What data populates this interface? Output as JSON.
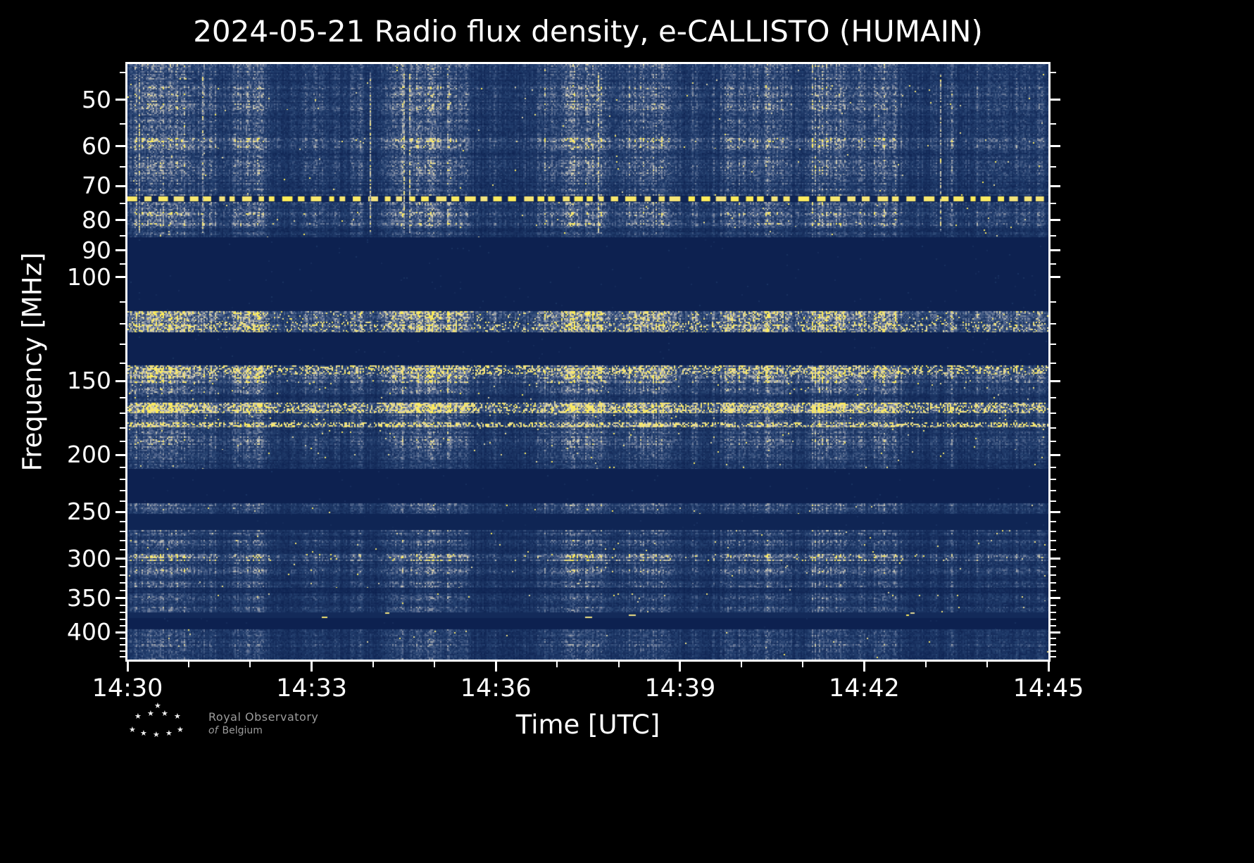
{
  "page": {
    "background": "#000000"
  },
  "header": {
    "title": "2024-05-21 Radio flux density, e-CALLISTO (HUMAIN)"
  },
  "footer": {
    "org_line1": "Royal Observatory",
    "org_line2_italic": "of",
    "org_line2_rest": "Belgium"
  },
  "chart_data": {
    "type": "heatmap",
    "title": "2024-05-21 Radio flux density, e-CALLISTO (HUMAIN)",
    "date": "2024-05-21",
    "instrument": "e-CALLISTO",
    "station": "HUMAIN",
    "xlabel": "Time [UTC]",
    "ylabel": "Frequency [MHz]",
    "x_ticks": [
      "14:30",
      "14:33",
      "14:36",
      "14:39",
      "14:42",
      "14:45"
    ],
    "x_total_minutes": 15,
    "x_major_every": 3,
    "time_range_utc": [
      "14:30",
      "14:45"
    ],
    "y_ticks": [
      50,
      60,
      70,
      80,
      90,
      100,
      150,
      200,
      250,
      300,
      350,
      400
    ],
    "y_minor_ticks": [
      45,
      55,
      65,
      75,
      85,
      95,
      110,
      120,
      130,
      140,
      160,
      170,
      180,
      190,
      210,
      220,
      230,
      240,
      260,
      270,
      280,
      290,
      310,
      320,
      330,
      340,
      360,
      370,
      380,
      390,
      410,
      420,
      430,
      440
    ],
    "y_range_mhz": [
      43.5,
      445
    ],
    "y_scale": "log",
    "grid": false,
    "legend": "none",
    "background_hex": "#0b1f4e",
    "colormap": [
      [
        0.0,
        "#0b1f4e"
      ],
      [
        0.3,
        "#24406f"
      ],
      [
        0.5,
        "#4f648c"
      ],
      [
        0.65,
        "#8b94a6"
      ],
      [
        0.78,
        "#c9c7b6"
      ],
      [
        0.88,
        "#efe08a"
      ],
      [
        1.0,
        "#ffee55"
      ]
    ],
    "seed": 20240521,
    "event_streaks": 7,
    "bands": [
      {
        "f0": 43.5,
        "f1": 47,
        "kind": "noise",
        "base": 0.3,
        "yp": 0.002
      },
      {
        "f0": 47,
        "f1": 52,
        "kind": "noise",
        "base": 0.36,
        "yp": 0.004
      },
      {
        "f0": 52,
        "f1": 58,
        "kind": "noise",
        "base": 0.3,
        "yp": 0.002
      },
      {
        "f0": 58,
        "f1": 60.5,
        "kind": "noise",
        "base": 0.42,
        "yp": 0.003
      },
      {
        "f0": 60.5,
        "f1": 64,
        "kind": "noise",
        "base": 0.3,
        "yp": 0.002
      },
      {
        "f0": 64,
        "f1": 67,
        "kind": "noise",
        "base": 0.34,
        "yp": 0.002
      },
      {
        "f0": 67,
        "f1": 72.8,
        "kind": "noise",
        "base": 0.29,
        "yp": 0.002
      },
      {
        "f0": 73,
        "f1": 74.4,
        "kind": "dash"
      },
      {
        "f0": 74.5,
        "f1": 77.5,
        "kind": "noise",
        "base": 0.33,
        "yp": 0.003
      },
      {
        "f0": 77.5,
        "f1": 82,
        "kind": "noise",
        "base": 0.42,
        "yp": 0.004
      },
      {
        "f0": 82,
        "f1": 85.5,
        "kind": "noise",
        "base": 0.27,
        "yp": 0.002
      },
      {
        "f0": 85.5,
        "f1": 114,
        "kind": "blank"
      },
      {
        "f0": 114,
        "f1": 119,
        "kind": "noise",
        "base": 0.5,
        "yp": 0.05
      },
      {
        "f0": 119,
        "f1": 124,
        "kind": "noise",
        "base": 0.52,
        "yp": 0.16
      },
      {
        "f0": 124,
        "f1": 141,
        "kind": "blank"
      },
      {
        "f0": 141,
        "f1": 146,
        "kind": "noise",
        "base": 0.48,
        "yp": 0.3
      },
      {
        "f0": 146,
        "f1": 152,
        "kind": "noise",
        "base": 0.44,
        "yp": 0.01
      },
      {
        "f0": 152,
        "f1": 158,
        "kind": "noise",
        "base": 0.36,
        "yp": 0.008
      },
      {
        "f0": 158,
        "f1": 163,
        "kind": "noise",
        "base": 0.24,
        "yp": 0.004
      },
      {
        "f0": 163,
        "f1": 170,
        "kind": "noise",
        "base": 0.62,
        "yp": 0.3
      },
      {
        "f0": 170,
        "f1": 176,
        "kind": "noise",
        "base": 0.32,
        "yp": 0.01
      },
      {
        "f0": 176,
        "f1": 179.5,
        "kind": "noise",
        "base": 0.45,
        "yp": 0.4
      },
      {
        "f0": 179.5,
        "f1": 186,
        "kind": "noise",
        "base": 0.3,
        "yp": 0.006
      },
      {
        "f0": 186,
        "f1": 196,
        "kind": "noise",
        "base": 0.34,
        "yp": 0.004
      },
      {
        "f0": 196,
        "f1": 204,
        "kind": "noise",
        "base": 0.28,
        "yp": 0.003
      },
      {
        "f0": 204,
        "f1": 211,
        "kind": "noise",
        "base": 0.22,
        "yp": 0.002
      },
      {
        "f0": 211,
        "f1": 242,
        "kind": "blank"
      },
      {
        "f0": 242,
        "f1": 252,
        "kind": "noise",
        "base": 0.3,
        "yp": 0.004
      },
      {
        "f0": 252,
        "f1": 268,
        "kind": "blank",
        "base": 0.05
      },
      {
        "f0": 268,
        "f1": 274,
        "kind": "noise",
        "base": 0.3,
        "yp": 0.003
      },
      {
        "f0": 274,
        "f1": 279,
        "kind": "noise",
        "base": 0.18,
        "yp": 0.002
      },
      {
        "f0": 279,
        "f1": 285,
        "kind": "noise",
        "base": 0.34,
        "yp": 0.004
      },
      {
        "f0": 285,
        "f1": 295,
        "kind": "noise",
        "base": 0.24,
        "yp": 0.002
      },
      {
        "f0": 295,
        "f1": 303,
        "kind": "noise",
        "base": 0.44,
        "yp": 0.02
      },
      {
        "f0": 303,
        "f1": 313,
        "kind": "noise",
        "base": 0.27,
        "yp": 0.003
      },
      {
        "f0": 313,
        "f1": 320,
        "kind": "noise",
        "base": 0.33,
        "yp": 0.003
      },
      {
        "f0": 320,
        "f1": 328,
        "kind": "noise",
        "base": 0.22,
        "yp": 0.002
      },
      {
        "f0": 328,
        "f1": 336,
        "kind": "noise",
        "base": 0.3,
        "yp": 0.003
      },
      {
        "f0": 336,
        "f1": 344,
        "kind": "noise",
        "base": 0.14,
        "yp": 0.001
      },
      {
        "f0": 344,
        "f1": 354,
        "kind": "noise",
        "base": 0.3,
        "yp": 0.004
      },
      {
        "f0": 354,
        "f1": 362,
        "kind": "noise",
        "base": 0.22,
        "yp": 0.002
      },
      {
        "f0": 362,
        "f1": 370,
        "kind": "noise",
        "base": 0.27,
        "yp": 0.002
      },
      {
        "f0": 370,
        "f1": 378,
        "kind": "sparse",
        "base": 0.1
      },
      {
        "f0": 378,
        "f1": 395,
        "kind": "blank"
      },
      {
        "f0": 395,
        "f1": 412,
        "kind": "noise",
        "base": 0.27,
        "yp": 0.003
      },
      {
        "f0": 412,
        "f1": 424,
        "kind": "noise",
        "base": 0.31,
        "yp": 0.003
      },
      {
        "f0": 424,
        "f1": 445,
        "kind": "noise",
        "base": 0.23,
        "yp": 0.002
      }
    ]
  }
}
